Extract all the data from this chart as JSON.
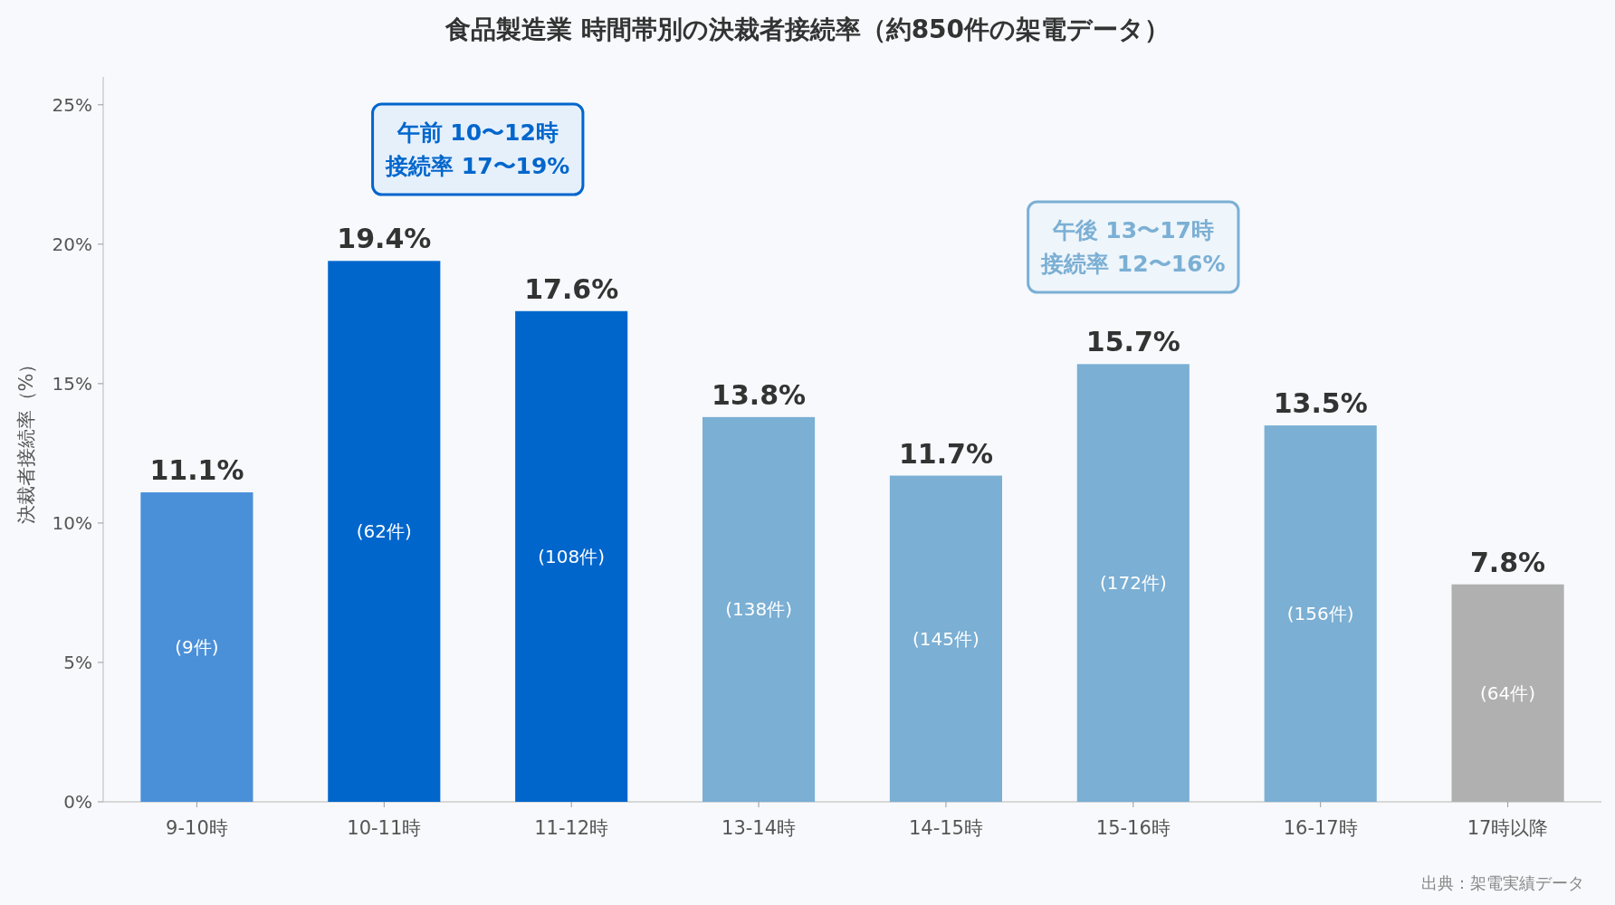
{
  "chart_data": {
    "type": "bar",
    "title": "食品製造業 時間帯別の決裁者接続率（約850件の架電データ）",
    "ylabel": "決裁者接続率（%）",
    "categories": [
      "9-10時",
      "10-11時",
      "11-12時",
      "13-14時",
      "14-15時",
      "15-16時",
      "16-17時",
      "17時以降"
    ],
    "values": [
      11.1,
      19.4,
      17.6,
      13.8,
      11.7,
      15.7,
      13.5,
      7.8
    ],
    "colors": [
      "#4a90d9",
      "#0066cc",
      "#0066cc",
      "#7bafd4",
      "#7bafd4",
      "#7bafd4",
      "#7bafd4",
      "#b0b0b0"
    ],
    "value_labels": [
      "11.1%",
      "19.4%",
      "17.6%",
      "13.8%",
      "11.7%",
      "15.7%",
      "13.5%",
      "7.8%"
    ],
    "ylim": [
      0,
      26
    ],
    "yticks": [
      {
        "value": 0,
        "label": "0%"
      },
      {
        "value": 5,
        "label": "5%"
      },
      {
        "value": 10,
        "label": "10%"
      },
      {
        "value": 15,
        "label": "15%"
      },
      {
        "value": 20,
        "label": "20%"
      },
      {
        "value": 25,
        "label": "25%"
      }
    ],
    "grid": false,
    "annotations": [
      "午前 10〜12時",
      "接続率 17〜19%",
      "午後 13〜17時",
      "接続率 12〜16%",
      "(9件)",
      "(62件)",
      "(108件)",
      "(138件)",
      "(145件)",
      "(172件)",
      "(156件)",
      "(64件)",
      "出典：架電実績データ"
    ]
  }
}
